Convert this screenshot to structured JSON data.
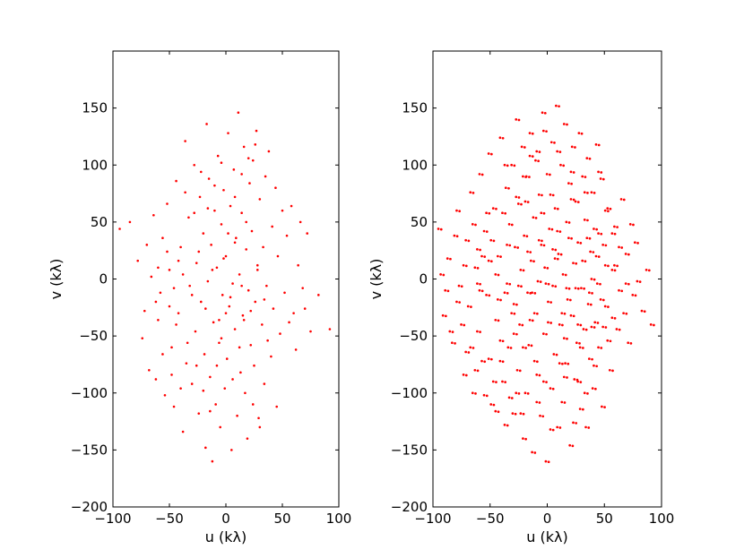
{
  "chart_data": [
    {
      "type": "scatter",
      "xlabel": "u (kλ)",
      "ylabel": "v (kλ)",
      "xlim": [
        -100,
        100
      ],
      "ylim": [
        -200,
        200
      ],
      "xticks": [
        "−100",
        "−50",
        "0",
        "50",
        "100"
      ],
      "yticks": [
        "−200",
        "−150",
        "−100",
        "−50",
        "0",
        "50",
        "100",
        "150"
      ],
      "grid": false,
      "marker_color": "#ff0000",
      "points": [
        [
          -94,
          44
        ],
        [
          -85,
          50
        ],
        [
          -78,
          16
        ],
        [
          -74,
          -52
        ],
        [
          -72,
          -28
        ],
        [
          -68,
          -80
        ],
        [
          -64,
          56
        ],
        [
          -62,
          -88
        ],
        [
          -58,
          -12
        ],
        [
          -56,
          36
        ],
        [
          -54,
          -102
        ],
        [
          -52,
          66
        ],
        [
          -50,
          8
        ],
        [
          -48,
          -60
        ],
        [
          -46,
          -112
        ],
        [
          -44,
          86
        ],
        [
          -42,
          -30
        ],
        [
          -40,
          28
        ],
        [
          -38,
          -134
        ],
        [
          -36,
          121
        ],
        [
          -35,
          -74
        ],
        [
          -33,
          54
        ],
        [
          -32,
          -6
        ],
        [
          -30,
          -92
        ],
        [
          -28,
          100
        ],
        [
          -27,
          -46
        ],
        [
          -26,
          14
        ],
        [
          -24,
          -118
        ],
        [
          -23,
          72
        ],
        [
          -22,
          -20
        ],
        [
          -20,
          40
        ],
        [
          -19,
          -66
        ],
        [
          -18,
          -148
        ],
        [
          -17,
          136
        ],
        [
          -16,
          -2
        ],
        [
          -15,
          88
        ],
        [
          -14,
          -86
        ],
        [
          -13,
          30
        ],
        [
          -12,
          -160
        ],
        [
          -11,
          -38
        ],
        [
          -10,
          60
        ],
        [
          -9,
          -110
        ],
        [
          -8,
          10
        ],
        [
          -7,
          108
        ],
        [
          -6,
          -56
        ],
        [
          -5,
          -130
        ],
        [
          -4,
          48
        ],
        [
          -3,
          -14
        ],
        [
          -2,
          78
        ],
        [
          -1,
          -96
        ],
        [
          0,
          20
        ],
        [
          1,
          -70
        ],
        [
          2,
          128
        ],
        [
          3,
          -24
        ],
        [
          4,
          64
        ],
        [
          5,
          -150
        ],
        [
          6,
          -4
        ],
        [
          7,
          96
        ],
        [
          8,
          -44
        ],
        [
          9,
          36
        ],
        [
          10,
          -120
        ],
        [
          11,
          146
        ],
        [
          12,
          4
        ],
        [
          13,
          -82
        ],
        [
          14,
          58
        ],
        [
          15,
          -32
        ],
        [
          16,
          116
        ],
        [
          17,
          -100
        ],
        [
          18,
          26
        ],
        [
          19,
          -140
        ],
        [
          20,
          -10
        ],
        [
          21,
          84
        ],
        [
          22,
          -58
        ],
        [
          23,
          42
        ],
        [
          24,
          104
        ],
        [
          25,
          -76
        ],
        [
          26,
          -20
        ],
        [
          27,
          130
        ],
        [
          28,
          12
        ],
        [
          29,
          -122
        ],
        [
          30,
          70
        ],
        [
          32,
          -40
        ],
        [
          33,
          28
        ],
        [
          34,
          -92
        ],
        [
          35,
          90
        ],
        [
          36,
          -6
        ],
        [
          37,
          -54
        ],
        [
          38,
          112
        ],
        [
          40,
          -68
        ],
        [
          41,
          46
        ],
        [
          42,
          -26
        ],
        [
          44,
          80
        ],
        [
          45,
          -112
        ],
        [
          46,
          20
        ],
        [
          48,
          -48
        ],
        [
          50,
          60
        ],
        [
          52,
          -12
        ],
        [
          54,
          38
        ],
        [
          56,
          -38
        ],
        [
          58,
          64
        ],
        [
          60,
          -30
        ],
        [
          62,
          -62
        ],
        [
          64,
          12
        ],
        [
          66,
          50
        ],
        [
          68,
          -8
        ],
        [
          70,
          -26
        ],
        [
          72,
          40
        ],
        [
          75,
          -46
        ],
        [
          82,
          -14
        ],
        [
          92,
          -44
        ],
        [
          -60,
          -36
        ],
        [
          -46,
          -8
        ],
        [
          -38,
          4
        ],
        [
          -30,
          -14
        ],
        [
          -24,
          24
        ],
        [
          -18,
          -26
        ],
        [
          -12,
          8
        ],
        [
          -6,
          -36
        ],
        [
          -2,
          18
        ],
        [
          4,
          -16
        ],
        [
          8,
          32
        ],
        [
          14,
          -6
        ],
        [
          18,
          50
        ],
        [
          22,
          -28
        ],
        [
          28,
          8
        ],
        [
          34,
          -18
        ],
        [
          -52,
          24
        ],
        [
          -44,
          -40
        ],
        [
          -34,
          -56
        ],
        [
          -26,
          -76
        ],
        [
          -20,
          -98
        ],
        [
          -14,
          -116
        ],
        [
          -8,
          -76
        ],
        [
          -4,
          -52
        ],
        [
          0,
          -30
        ],
        [
          6,
          -88
        ],
        [
          12,
          -60
        ],
        [
          16,
          -36
        ],
        [
          24,
          -110
        ],
        [
          30,
          -130
        ],
        [
          -36,
          76
        ],
        [
          -28,
          58
        ],
        [
          -22,
          94
        ],
        [
          -16,
          62
        ],
        [
          -10,
          82
        ],
        [
          -4,
          102
        ],
        [
          2,
          40
        ],
        [
          8,
          72
        ],
        [
          14,
          92
        ],
        [
          20,
          106
        ],
        [
          26,
          118
        ],
        [
          -40,
          -96
        ],
        [
          -48,
          -84
        ],
        [
          -56,
          -66
        ],
        [
          -62,
          -20
        ],
        [
          -66,
          2
        ],
        [
          -70,
          30
        ],
        [
          -60,
          10
        ],
        [
          -50,
          -24
        ],
        [
          -42,
          16
        ]
      ],
      "marker_size": 1.3
    },
    {
      "type": "scatter",
      "xlabel": "u (kλ)",
      "ylabel": "v (kλ)",
      "xlim": [
        -100,
        100
      ],
      "ylim": [
        -200,
        200
      ],
      "xticks": [
        "−100",
        "−50",
        "0",
        "50",
        "100"
      ],
      "yticks": [
        "−200",
        "−150",
        "−100",
        "−50",
        "0",
        "50",
        "100",
        "150"
      ],
      "grid": false,
      "marker_color": "#ff0000",
      "marker_size": 1.7,
      "points": [
        [
          -94,
          44
        ],
        [
          -90,
          -32
        ],
        [
          -86,
          18
        ],
        [
          -82,
          -56
        ],
        [
          -78,
          60
        ],
        [
          -76,
          -6
        ],
        [
          -72,
          -84
        ],
        [
          -70,
          34
        ],
        [
          -68,
          -24
        ],
        [
          -66,
          76
        ],
        [
          -64,
          -100
        ],
        [
          -62,
          10
        ],
        [
          -60,
          -46
        ],
        [
          -58,
          92
        ],
        [
          -56,
          -72
        ],
        [
          -54,
          42
        ],
        [
          -52,
          -14
        ],
        [
          -50,
          110
        ],
        [
          -48,
          -110
        ],
        [
          -46,
          62
        ],
        [
          -44,
          -36
        ],
        [
          -42,
          20
        ],
        [
          -40,
          124
        ],
        [
          -38,
          -90
        ],
        [
          -36,
          -128
        ],
        [
          -35,
          80
        ],
        [
          -34,
          -4
        ],
        [
          -33,
          -60
        ],
        [
          -32,
          48
        ],
        [
          -30,
          100
        ],
        [
          -29,
          -118
        ],
        [
          -28,
          -22
        ],
        [
          -27,
          28
        ],
        [
          -26,
          140
        ],
        [
          -25,
          -80
        ],
        [
          -24,
          66
        ],
        [
          -23,
          -40
        ],
        [
          -22,
          8
        ],
        [
          -21,
          116
        ],
        [
          -20,
          -140
        ],
        [
          -19,
          38
        ],
        [
          -18,
          -100
        ],
        [
          -17,
          90
        ],
        [
          -16,
          -12
        ],
        [
          -15,
          -58
        ],
        [
          -14,
          128
        ],
        [
          -13,
          16
        ],
        [
          -12,
          -152
        ],
        [
          -11,
          54
        ],
        [
          -10,
          -30
        ],
        [
          -9,
          104
        ],
        [
          -8,
          -84
        ],
        [
          -7,
          -2
        ],
        [
          -6,
          74
        ],
        [
          -5,
          -120
        ],
        [
          -4,
          30
        ],
        [
          -3,
          146
        ],
        [
          -2,
          -48
        ],
        [
          -1,
          10
        ],
        [
          0,
          -160
        ],
        [
          1,
          92
        ],
        [
          2,
          -20
        ],
        [
          3,
          44
        ],
        [
          4,
          -96
        ],
        [
          5,
          120
        ],
        [
          6,
          -6
        ],
        [
          7,
          -66
        ],
        [
          8,
          62
        ],
        [
          9,
          152
        ],
        [
          10,
          -130
        ],
        [
          11,
          22
        ],
        [
          12,
          -40
        ],
        [
          13,
          100
        ],
        [
          14,
          -108
        ],
        [
          15,
          4
        ],
        [
          16,
          136
        ],
        [
          17,
          -74
        ],
        [
          18,
          50
        ],
        [
          19,
          -18
        ],
        [
          20,
          84
        ],
        [
          21,
          -146
        ],
        [
          22,
          -32
        ],
        [
          23,
          116
        ],
        [
          24,
          14
        ],
        [
          25,
          -88
        ],
        [
          26,
          68
        ],
        [
          27,
          -56
        ],
        [
          28,
          32
        ],
        [
          29,
          128
        ],
        [
          30,
          -114
        ],
        [
          31,
          -8
        ],
        [
          32,
          90
        ],
        [
          33,
          -44
        ],
        [
          34,
          52
        ],
        [
          35,
          -130
        ],
        [
          36,
          106
        ],
        [
          37,
          -22
        ],
        [
          38,
          -70
        ],
        [
          39,
          24
        ],
        [
          40,
          76
        ],
        [
          41,
          -96
        ],
        [
          42,
          44
        ],
        [
          43,
          -38
        ],
        [
          44,
          118
        ],
        [
          45,
          -4
        ],
        [
          46,
          -60
        ],
        [
          48,
          88
        ],
        [
          49,
          -112
        ],
        [
          50,
          30
        ],
        [
          52,
          -24
        ],
        [
          54,
          62
        ],
        [
          56,
          -80
        ],
        [
          58,
          8
        ],
        [
          60,
          46
        ],
        [
          62,
          -44
        ],
        [
          64,
          -10
        ],
        [
          66,
          70
        ],
        [
          68,
          -30
        ],
        [
          70,
          22
        ],
        [
          72,
          -56
        ],
        [
          74,
          48
        ],
        [
          76,
          -14
        ],
        [
          78,
          32
        ],
        [
          80,
          -2
        ],
        [
          84,
          -28
        ],
        [
          88,
          8
        ],
        [
          92,
          -40
        ],
        [
          -88,
          -10
        ],
        [
          -80,
          38
        ],
        [
          -74,
          -40
        ],
        [
          -66,
          -60
        ],
        [
          -58,
          -10
        ],
        [
          -52,
          58
        ],
        [
          -46,
          -90
        ],
        [
          -40,
          -54
        ],
        [
          -34,
          30
        ],
        [
          -28,
          -48
        ],
        [
          -22,
          -118
        ],
        [
          -16,
          24
        ],
        [
          -10,
          -72
        ],
        [
          -4,
          58
        ],
        [
          2,
          -38
        ],
        [
          8,
          18
        ],
        [
          14,
          -30
        ],
        [
          20,
          36
        ],
        [
          26,
          -8
        ],
        [
          32,
          16
        ],
        [
          38,
          -12
        ],
        [
          44,
          20
        ],
        [
          50,
          -42
        ],
        [
          -60,
          26
        ],
        [
          -50,
          -70
        ],
        [
          -44,
          4
        ],
        [
          -38,
          58
        ],
        [
          -30,
          -30
        ],
        [
          -24,
          -6
        ],
        [
          -18,
          68
        ],
        [
          -12,
          -12
        ],
        [
          -6,
          34
        ],
        [
          0,
          -4
        ],
        [
          6,
          26
        ],
        [
          12,
          -74
        ],
        [
          18,
          -8
        ],
        [
          24,
          -126
        ],
        [
          30,
          -60
        ],
        [
          36,
          36
        ],
        [
          42,
          -76
        ],
        [
          48,
          -18
        ],
        [
          54,
          -54
        ],
        [
          60,
          12
        ],
        [
          -70,
          -64
        ],
        [
          -62,
          -80
        ],
        [
          -54,
          -102
        ],
        [
          -44,
          -116
        ],
        [
          -36,
          -12
        ],
        [
          -26,
          -100
        ],
        [
          -20,
          90
        ],
        [
          -14,
          -36
        ],
        [
          -8,
          112
        ],
        [
          -2,
          -90
        ],
        [
          4,
          74
        ],
        [
          10,
          42
        ],
        [
          16,
          -52
        ],
        [
          22,
          94
        ],
        [
          28,
          -90
        ],
        [
          34,
          -100
        ],
        [
          40,
          0
        ],
        [
          46,
          40
        ],
        [
          52,
          12
        ],
        [
          58,
          -34
        ],
        [
          -92,
          4
        ],
        [
          -84,
          -46
        ],
        [
          -78,
          -20
        ],
        [
          -72,
          12
        ],
        [
          -64,
          48
        ],
        [
          -56,
          20
        ],
        [
          -48,
          34
        ],
        [
          -42,
          -18
        ],
        [
          -36,
          100
        ],
        [
          -32,
          -104
        ],
        [
          -26,
          72
        ],
        [
          -20,
          -60
        ],
        [
          -14,
          108
        ],
        [
          -8,
          -108
        ],
        [
          -2,
          130
        ],
        [
          4,
          -132
        ],
        [
          10,
          112
        ],
        [
          16,
          -86
        ],
        [
          22,
          70
        ],
        [
          28,
          -40
        ],
        [
          34,
          76
        ],
        [
          40,
          -42
        ],
        [
          46,
          94
        ],
        [
          52,
          60
        ],
        [
          58,
          40
        ],
        [
          64,
          28
        ],
        [
          70,
          -4
        ],
        [
          -60,
          -4
        ],
        [
          -50,
          16
        ],
        [
          -40,
          -72
        ]
      ]
    }
  ]
}
